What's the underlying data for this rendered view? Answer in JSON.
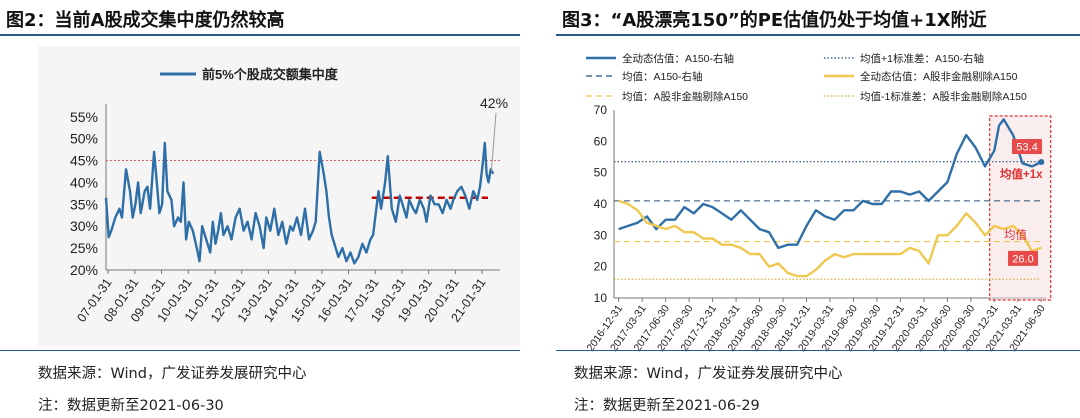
{
  "left": {
    "title": "图2：当前A股成交集中度仍然较高",
    "source": "数据来源：Wind，广发证券发展研究中心",
    "note": "注：数据更新至2021-06-30"
  },
  "right": {
    "title": "图3：“A股漂亮150”的PE估值仍处于均值+1X附近",
    "source": "数据来源：Wind，广发证券发展研究中心",
    "note": "注：数据更新至2021-06-29"
  },
  "chart_data": [
    {
      "type": "line",
      "title": "",
      "legend": [
        "前5%个股成交额集中度"
      ],
      "legend_position": "top",
      "y_ticks": [
        "55%",
        "50%",
        "45%",
        "40%",
        "35%",
        "30%",
        "25%",
        "20%"
      ],
      "y_tick_values": [
        55,
        50,
        45,
        40,
        35,
        30,
        25,
        20
      ],
      "ylim": [
        20,
        57
      ],
      "xlim": [
        2007.0,
        2021.75
      ],
      "x_ticks": [
        "07-01-31",
        "08-01-31",
        "09-01-31",
        "10-01-31",
        "11-01-31",
        "12-01-31",
        "13-01-31",
        "14-01-31",
        "15-01-31",
        "16-01-31",
        "17-01-31",
        "18-01-31",
        "19-01-31",
        "20-01-31",
        "21-01-31"
      ],
      "x_tick_values": [
        2007.08,
        2008.08,
        2009.08,
        2010.08,
        2011.08,
        2012.08,
        2013.08,
        2014.08,
        2015.08,
        2016.08,
        2017.08,
        2018.08,
        2019.08,
        2020.08,
        2021.08
      ],
      "series": [
        {
          "name": "前5%个股成交额集中度",
          "color": "#2e6fa7",
          "x": [
            2007.0,
            2007.1,
            2007.2,
            2007.35,
            2007.5,
            2007.6,
            2007.75,
            2007.9,
            2008.0,
            2008.1,
            2008.2,
            2008.3,
            2008.45,
            2008.55,
            2008.65,
            2008.8,
            2008.9,
            2009.0,
            2009.1,
            2009.2,
            2009.3,
            2009.45,
            2009.55,
            2009.7,
            2009.8,
            2009.9,
            2010.0,
            2010.1,
            2010.25,
            2010.4,
            2010.5,
            2010.6,
            2010.75,
            2010.9,
            2011.0,
            2011.1,
            2011.2,
            2011.3,
            2011.4,
            2011.55,
            2011.7,
            2011.85,
            2012.0,
            2012.15,
            2012.3,
            2012.45,
            2012.6,
            2012.75,
            2012.9,
            2013.0,
            2013.15,
            2013.3,
            2013.45,
            2013.6,
            2013.75,
            2013.9,
            2014.0,
            2014.15,
            2014.3,
            2014.45,
            2014.6,
            2014.75,
            2014.85,
            2015.0,
            2015.15,
            2015.25,
            2015.35,
            2015.45,
            2015.55,
            2015.7,
            2015.85,
            2016.0,
            2016.15,
            2016.3,
            2016.45,
            2016.6,
            2016.75,
            2016.9,
            2017.0,
            2017.1,
            2017.2,
            2017.3,
            2017.45,
            2017.55,
            2017.7,
            2017.85,
            2018.0,
            2018.1,
            2018.25,
            2018.35,
            2018.5,
            2018.6,
            2018.75,
            2018.9,
            2019.0,
            2019.15,
            2019.3,
            2019.45,
            2019.6,
            2019.75,
            2019.9,
            2020.0,
            2020.15,
            2020.3,
            2020.45,
            2020.6,
            2020.75,
            2020.9,
            2021.0,
            2021.1,
            2021.18,
            2021.25,
            2021.32,
            2021.4,
            2021.5
          ],
          "values": [
            36.5,
            27.5,
            29,
            32,
            34,
            32,
            43,
            38,
            32,
            35,
            40,
            33,
            38,
            39,
            34,
            47,
            40,
            33,
            35,
            49,
            38,
            36,
            30,
            32,
            31,
            40,
            27,
            31,
            29,
            25,
            22,
            30,
            27,
            24,
            31,
            26,
            29,
            33,
            28,
            30,
            27,
            32,
            34,
            29,
            31,
            27,
            33,
            30,
            25,
            32,
            29,
            34,
            28,
            31,
            26,
            30,
            29,
            32,
            28,
            34,
            27,
            29,
            31,
            47,
            42,
            38,
            32,
            28,
            26,
            23,
            25,
            22,
            24,
            21.5,
            23,
            26,
            24,
            27,
            28,
            33,
            38,
            34,
            40,
            46,
            34,
            31,
            37,
            35,
            32,
            36,
            34,
            33,
            36,
            34,
            31,
            37,
            35,
            35,
            33,
            36,
            34,
            36,
            38,
            39,
            37,
            34,
            38,
            36,
            39,
            44,
            49,
            42,
            40,
            43,
            42
          ],
          "annotation": "42%"
        }
      ],
      "reference_lines": [
        {
          "name": "red dotted line",
          "value": 45,
          "style": "dotted",
          "color": "#e06060"
        },
        {
          "name": "red dashed line",
          "value": 36.5,
          "style": "dashed",
          "color": "#c00000",
          "x_from": 2016.95,
          "x_to": 2021.3
        }
      ]
    },
    {
      "type": "line",
      "title": "",
      "ylim": [
        10,
        70
      ],
      "y_ticks": [
        "70",
        "60",
        "50",
        "40",
        "30",
        "20",
        "10"
      ],
      "y_tick_values": [
        70,
        60,
        50,
        40,
        30,
        20,
        10
      ],
      "xlim": [
        2016.95,
        2021.55
      ],
      "x_ticks": [
        "2016-12-31",
        "2017-03-31",
        "2017-06-30",
        "2017-09-30",
        "2017-12-31",
        "2018-03-31",
        "2018-06-30",
        "2018-09-30",
        "2018-12-31",
        "2019-03-31",
        "2019-06-30",
        "2019-09-30",
        "2019-12-31",
        "2020-03-31",
        "2020-06-30",
        "2020-09-30",
        "2020-12-31",
        "2021-03-31",
        "2021-06-30"
      ],
      "x_tick_values": [
        2017.0,
        2017.25,
        2017.5,
        2017.75,
        2018.0,
        2018.25,
        2018.5,
        2018.75,
        2019.0,
        2019.25,
        2019.5,
        2019.75,
        2020.0,
        2020.25,
        2020.5,
        2020.75,
        2021.0,
        2021.25,
        2021.5
      ],
      "legend": [
        "全动态估值：A150-右轴",
        "均值+1标准差：A150-右轴",
        "均值：A150-右轴",
        "全动态估值：A股非金融剔除A150",
        "均值：A股非金融剔除A150",
        "均值-1标准差：A股非金融剔除A150"
      ],
      "series": [
        {
          "name": "全动态估值：A150-右轴",
          "color": "#2e6fa7",
          "style": "solid",
          "x": [
            2017.0,
            2017.1,
            2017.2,
            2017.3,
            2017.4,
            2017.5,
            2017.6,
            2017.7,
            2017.8,
            2017.9,
            2018.0,
            2018.1,
            2018.2,
            2018.3,
            2018.4,
            2018.5,
            2018.6,
            2018.7,
            2018.8,
            2018.9,
            2019.0,
            2019.1,
            2019.2,
            2019.3,
            2019.4,
            2019.5,
            2019.6,
            2019.7,
            2019.8,
            2019.9,
            2020.0,
            2020.1,
            2020.2,
            2020.3,
            2020.4,
            2020.5,
            2020.6,
            2020.7,
            2020.8,
            2020.9,
            2021.0,
            2021.05,
            2021.1,
            2021.2,
            2021.3,
            2021.4,
            2021.5
          ],
          "values": [
            32,
            33,
            34,
            36,
            32,
            35,
            35,
            39,
            37,
            40,
            39,
            37,
            35,
            38,
            35,
            32,
            31,
            26,
            27,
            27,
            33,
            38,
            36,
            35,
            38,
            38,
            41,
            40,
            40,
            44,
            44,
            43,
            44,
            41,
            44,
            47,
            56,
            62,
            58,
            52,
            57,
            65,
            67,
            62,
            53,
            52,
            53.4
          ]
        },
        {
          "name": "全动态估值：A股非金融剔除A150",
          "color": "#f0c850",
          "style": "solid",
          "x": [
            2017.0,
            2017.1,
            2017.2,
            2017.3,
            2017.4,
            2017.5,
            2017.6,
            2017.7,
            2017.8,
            2017.9,
            2018.0,
            2018.1,
            2018.2,
            2018.3,
            2018.4,
            2018.5,
            2018.6,
            2018.7,
            2018.8,
            2018.9,
            2019.0,
            2019.1,
            2019.2,
            2019.3,
            2019.4,
            2019.5,
            2019.6,
            2019.7,
            2019.8,
            2019.9,
            2020.0,
            2020.1,
            2020.2,
            2020.3,
            2020.4,
            2020.5,
            2020.6,
            2020.7,
            2020.8,
            2020.9,
            2021.0,
            2021.1,
            2021.2,
            2021.3,
            2021.4,
            2021.5
          ],
          "values": [
            41,
            40,
            38,
            34,
            33,
            32,
            33,
            31,
            31,
            29,
            29,
            27,
            27,
            26,
            24,
            24,
            20,
            21,
            18,
            17,
            17,
            19,
            22,
            24,
            23,
            24,
            24,
            24,
            24,
            24,
            24,
            26,
            25,
            21,
            30,
            30,
            33,
            37,
            34,
            30,
            33,
            32,
            33,
            30,
            25,
            26
          ]
        }
      ],
      "reference_lines": [
        {
          "name": "均值+1标准差：A150-右轴",
          "value": 53.5,
          "style": "dotted",
          "color": "#2a4f7a"
        },
        {
          "name": "均值：A150-右轴",
          "value": 41,
          "style": "dashed",
          "color": "#2a4f7a"
        },
        {
          "name": "均值：A股非金融剔除A150",
          "value": 28,
          "style": "dashed",
          "color": "#f0c850"
        },
        {
          "name": "均值-1标准差：A股非金融剔除A150",
          "value": 16,
          "style": "dotted",
          "color": "#d8a830"
        }
      ],
      "annotations": [
        {
          "text": "53.4",
          "value": 53.4
        },
        {
          "text": "均值+1x",
          "color": "#e03030"
        },
        {
          "text": "均值",
          "color": "#e03030"
        },
        {
          "text": "26.0",
          "value": 26.0
        }
      ],
      "highlight_box": {
        "x_from": 2020.95,
        "x_to": 2021.6,
        "color": "#e03030",
        "style": "dashed"
      }
    }
  ]
}
